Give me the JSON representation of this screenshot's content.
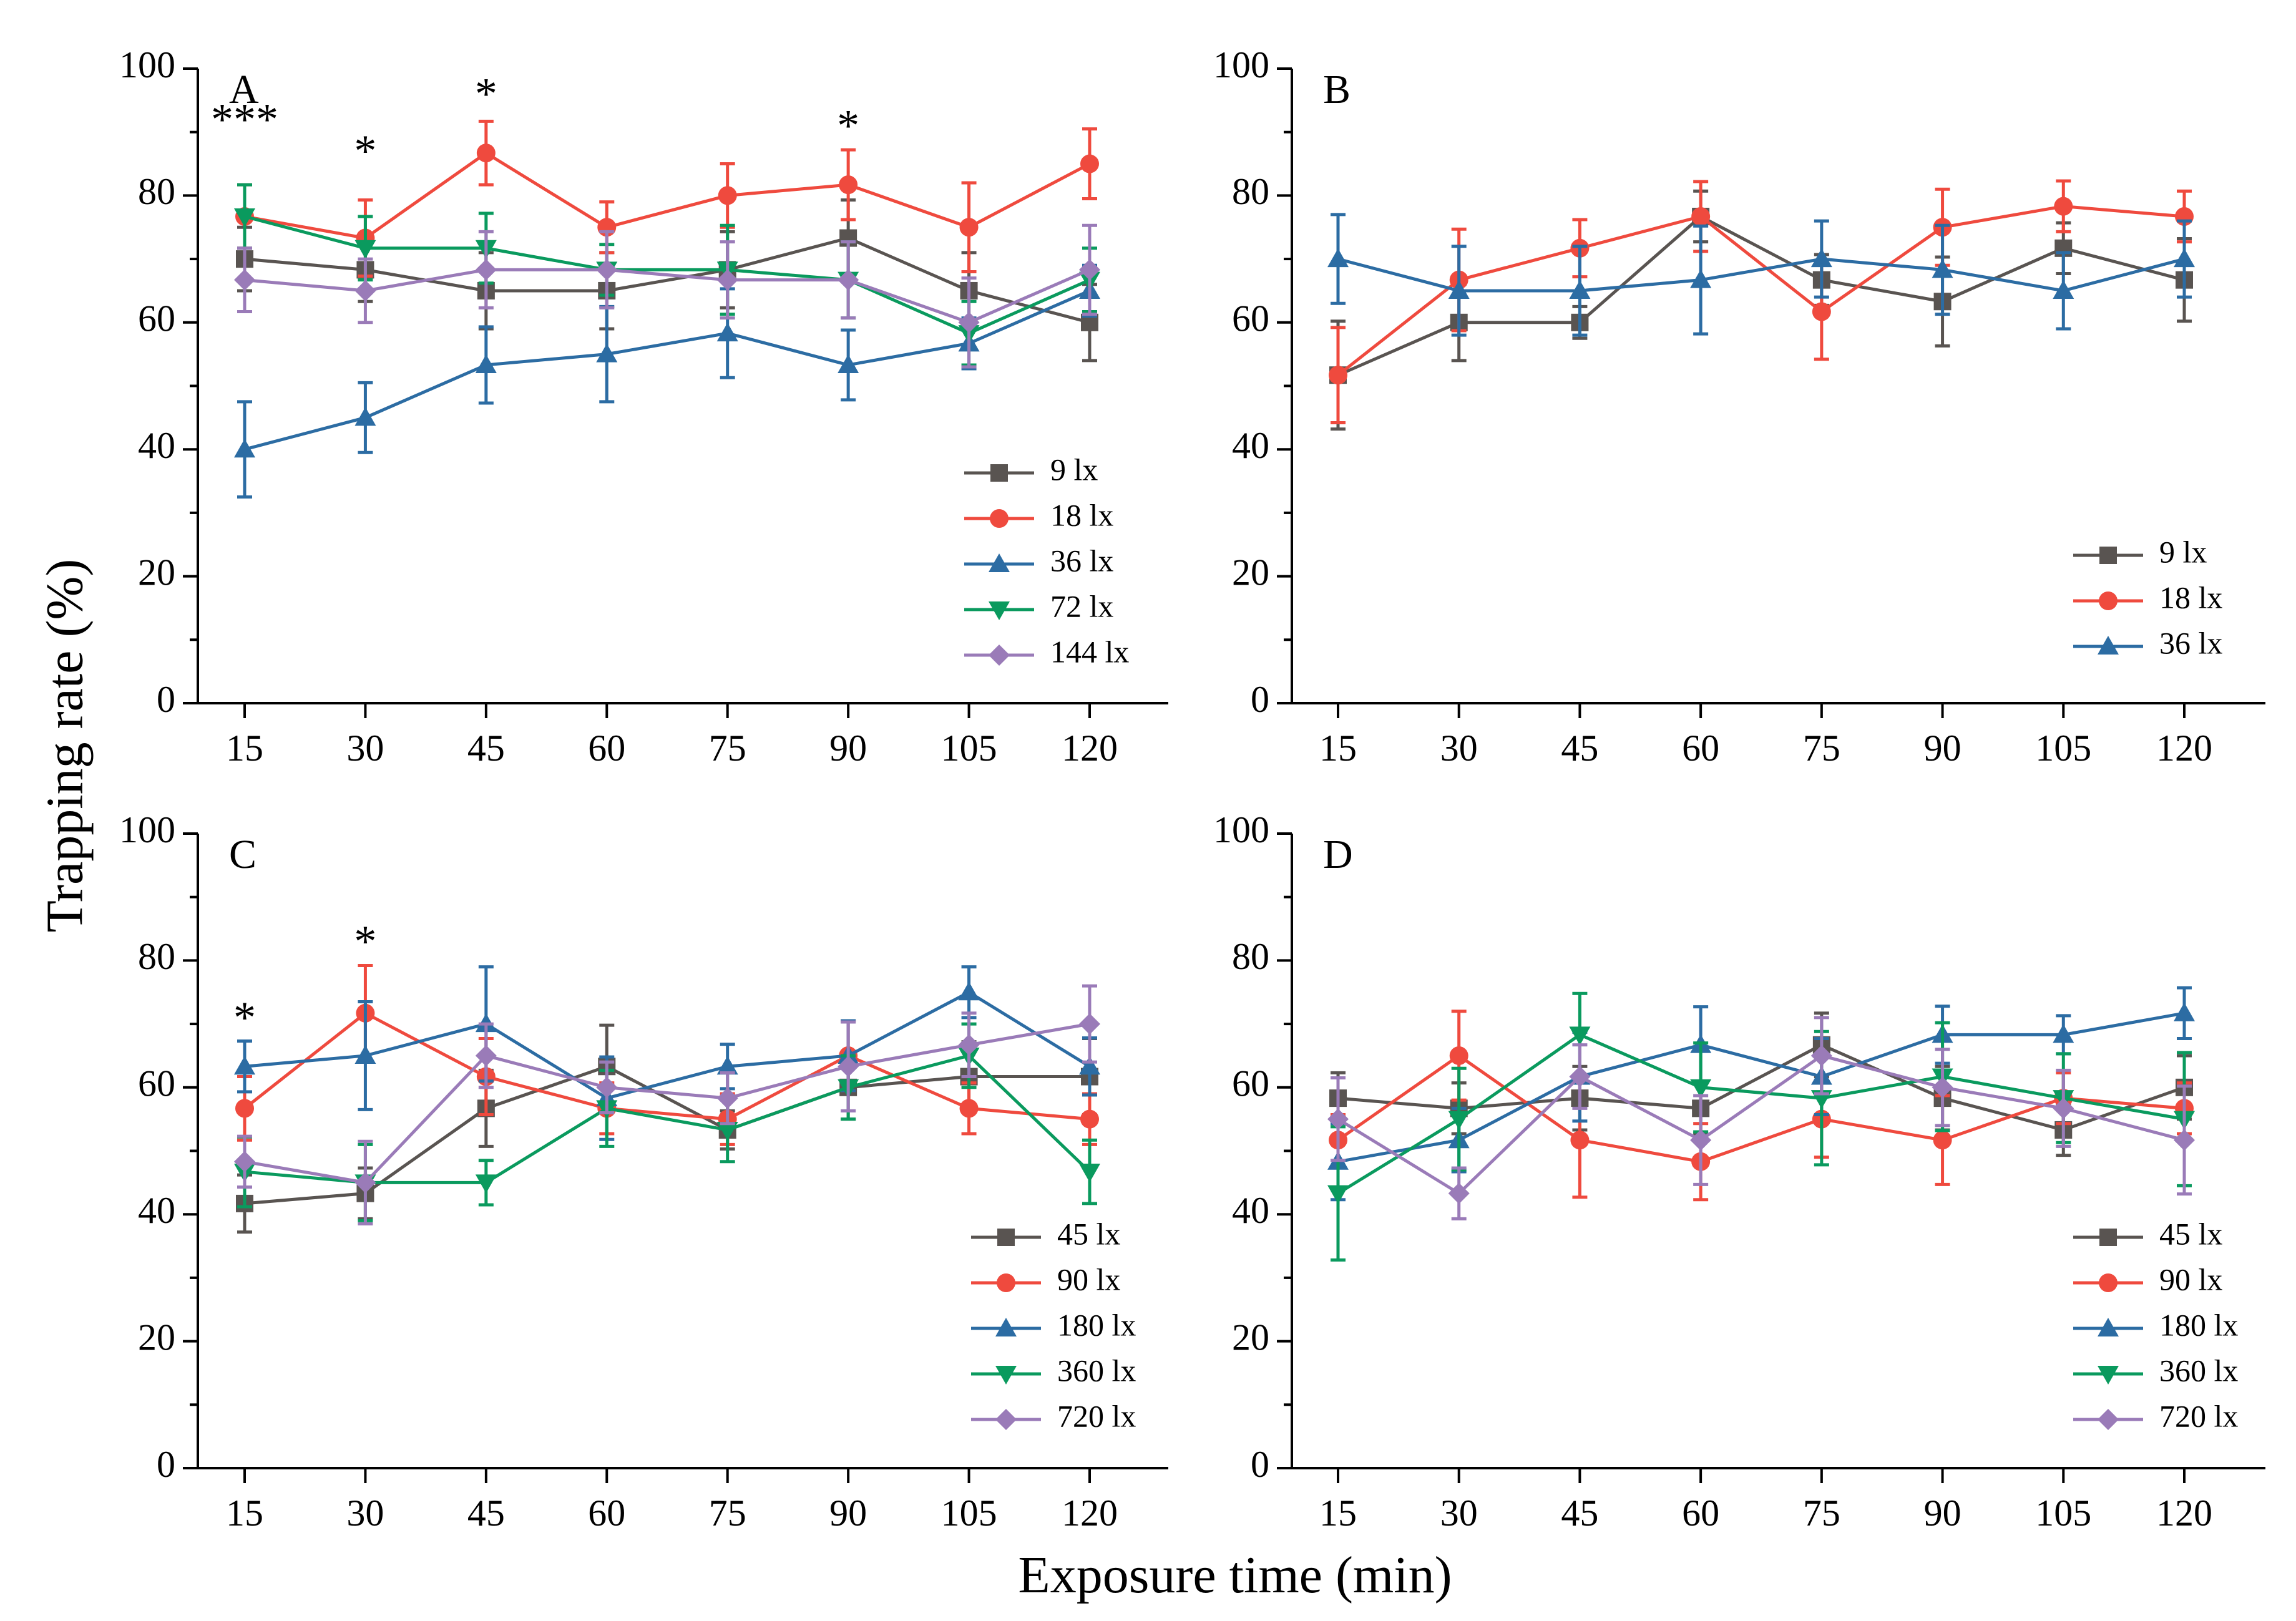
{
  "figure": {
    "ylabel": "Trapping rate (%)",
    "xlabel": "Exposure time (min)"
  },
  "chart_data": [
    {
      "panel": "A",
      "type": "line",
      "x": [
        15,
        30,
        45,
        60,
        75,
        90,
        105,
        120
      ],
      "xticks": [
        "15",
        "30",
        "45",
        "60",
        "75",
        "90",
        "105",
        "120"
      ],
      "ylim": [
        0,
        100
      ],
      "yticks": [
        "0",
        "20",
        "40",
        "60",
        "80",
        "100"
      ],
      "annotations": [
        {
          "x": 15,
          "text": "***",
          "y": 92
        },
        {
          "x": 30,
          "text": "*",
          "y": 87
        },
        {
          "x": 45,
          "text": "*",
          "y": 96
        },
        {
          "x": 90,
          "text": "*",
          "y": 91
        }
      ],
      "series": [
        {
          "name": "9 lx",
          "color": "#595451",
          "marker": "square",
          "values": [
            70,
            68.3,
            65,
            65,
            68.3,
            73.3,
            65,
            60
          ],
          "errors": [
            5,
            5,
            6,
            6,
            6,
            6,
            6,
            6
          ]
        },
        {
          "name": "18 lx",
          "color": "#ef4a3e",
          "marker": "circle",
          "values": [
            76.7,
            73.3,
            86.7,
            75,
            80,
            81.7,
            75,
            85
          ],
          "errors": [
            5,
            6,
            5,
            4,
            5,
            5.5,
            7,
            5.5
          ]
        },
        {
          "name": "36 lx",
          "color": "#2c6ca3",
          "marker": "triangle-up",
          "values": [
            40,
            45,
            53.3,
            55,
            58.3,
            53.3,
            56.7,
            65
          ],
          "errors": [
            7.5,
            5.5,
            6,
            7.5,
            7,
            5.5,
            4,
            4
          ]
        },
        {
          "name": "72 lx",
          "color": "#0a9a5e",
          "marker": "triangle-down",
          "values": [
            76.7,
            71.7,
            71.7,
            68.3,
            68.3,
            66.7,
            58.3,
            66.7
          ],
          "errors": [
            5,
            5,
            5.5,
            4,
            7,
            6,
            5,
            5
          ]
        },
        {
          "name": "144 lx",
          "color": "#9a7bb8",
          "marker": "diamond",
          "values": [
            66.7,
            65,
            68.3,
            68.3,
            66.7,
            66.7,
            60,
            68.3
          ],
          "errors": [
            5,
            5,
            6,
            6,
            6,
            6,
            7,
            7
          ]
        }
      ]
    },
    {
      "panel": "B",
      "type": "line",
      "x": [
        15,
        30,
        45,
        60,
        75,
        90,
        105,
        120
      ],
      "xticks": [
        "15",
        "30",
        "45",
        "60",
        "75",
        "90",
        "105",
        "120"
      ],
      "ylim": [
        0,
        100
      ],
      "yticks": [
        "0",
        "20",
        "40",
        "60",
        "80",
        "100"
      ],
      "annotations": [],
      "series": [
        {
          "name": "9 lx",
          "color": "#595451",
          "marker": "square",
          "values": [
            51.7,
            60,
            60,
            76.7,
            66.7,
            63.3,
            71.7,
            66.7
          ],
          "errors": [
            8.5,
            6,
            2.5,
            4,
            4,
            7,
            4,
            6.5
          ]
        },
        {
          "name": "18 lx",
          "color": "#ef4a3e",
          "marker": "circle",
          "values": [
            51.7,
            66.7,
            71.7,
            76.7,
            61.7,
            75,
            78.3,
            76.7
          ],
          "errors": [
            7.5,
            8,
            4.5,
            5.5,
            7.5,
            6,
            4,
            4
          ]
        },
        {
          "name": "36 lx",
          "color": "#2c6ca3",
          "marker": "triangle-up",
          "values": [
            70,
            65,
            65,
            66.7,
            70,
            68.3,
            65,
            70
          ],
          "errors": [
            7,
            7,
            7,
            8.5,
            6,
            7,
            6,
            6
          ]
        }
      ]
    },
    {
      "panel": "C",
      "type": "line",
      "x": [
        15,
        30,
        45,
        60,
        75,
        90,
        105,
        120
      ],
      "xticks": [
        "15",
        "30",
        "45",
        "60",
        "75",
        "90",
        "105",
        "120"
      ],
      "ylim": [
        0,
        100
      ],
      "yticks": [
        "0",
        "20",
        "40",
        "60",
        "80",
        "100"
      ],
      "annotations": [
        {
          "x": 15,
          "text": "*",
          "y": 71
        },
        {
          "x": 30,
          "text": "*",
          "y": 83
        }
      ],
      "series": [
        {
          "name": "45 lx",
          "color": "#595451",
          "marker": "square",
          "values": [
            41.7,
            43.3,
            56.7,
            63.3,
            53.3,
            60,
            61.7,
            61.7
          ],
          "errors": [
            4.5,
            4,
            6,
            6.5,
            3,
            5,
            5.5,
            6
          ]
        },
        {
          "name": "90 lx",
          "color": "#ef4a3e",
          "marker": "circle",
          "values": [
            56.7,
            71.7,
            61.7,
            56.7,
            55,
            65,
            56.7,
            55
          ],
          "errors": [
            5,
            7.5,
            6,
            4,
            4,
            5.5,
            4,
            4
          ]
        },
        {
          "name": "180 lx",
          "color": "#2c6ca3",
          "marker": "triangle-up",
          "values": [
            63.3,
            65,
            70,
            58.3,
            63.3,
            65,
            75,
            63.3
          ],
          "errors": [
            4,
            8.5,
            9,
            6.5,
            3.5,
            5.5,
            4,
            4.5
          ]
        },
        {
          "name": "360 lx",
          "color": "#0a9a5e",
          "marker": "triangle-down",
          "values": [
            46.7,
            45,
            45,
            56.7,
            53.3,
            60,
            65,
            46.7
          ],
          "errors": [
            5.5,
            6,
            3.5,
            6,
            5,
            5,
            5,
            5
          ]
        },
        {
          "name": "720 lx",
          "color": "#9a7bb8",
          "marker": "diamond",
          "values": [
            48.3,
            45,
            65,
            60,
            58.3,
            63.3,
            66.7,
            70
          ],
          "errors": [
            4,
            6.5,
            5,
            4,
            4,
            7,
            5,
            6
          ]
        }
      ]
    },
    {
      "panel": "D",
      "type": "line",
      "x": [
        15,
        30,
        45,
        60,
        75,
        90,
        105,
        120
      ],
      "xticks": [
        "15",
        "30",
        "45",
        "60",
        "75",
        "90",
        "105",
        "120"
      ],
      "ylim": [
        0,
        100
      ],
      "yticks": [
        "0",
        "20",
        "40",
        "60",
        "80",
        "100"
      ],
      "annotations": [],
      "series": [
        {
          "name": "45 lx",
          "color": "#595451",
          "marker": "square",
          "values": [
            58.3,
            56.7,
            58.3,
            56.7,
            66.7,
            58.3,
            53.3,
            60
          ],
          "errors": [
            4,
            4,
            5,
            4,
            5,
            5,
            4,
            5
          ]
        },
        {
          "name": "90 lx",
          "color": "#ef4a3e",
          "marker": "circle",
          "values": [
            51.7,
            65,
            51.7,
            48.3,
            55,
            51.7,
            58.3,
            56.7
          ],
          "errors": [
            4,
            7,
            9,
            6,
            6,
            7,
            4,
            4
          ]
        },
        {
          "name": "180 lx",
          "color": "#2c6ca3",
          "marker": "triangle-up",
          "values": [
            48.3,
            51.7,
            61.7,
            66.7,
            61.7,
            68.3,
            68.3,
            71.7
          ],
          "errors": [
            6,
            5,
            7,
            6,
            6,
            4.5,
            3,
            4
          ]
        },
        {
          "name": "360 lx",
          "color": "#0a9a5e",
          "marker": "triangle-down",
          "values": [
            43.3,
            55,
            68.3,
            60,
            58.3,
            61.7,
            58.3,
            55
          ],
          "errors": [
            10.5,
            8,
            6.5,
            7,
            10.5,
            8.5,
            7,
            10.5
          ]
        },
        {
          "name": "720 lx",
          "color": "#9a7bb8",
          "marker": "diamond",
          "values": [
            55,
            43.3,
            61.7,
            51.7,
            65,
            60,
            56.7,
            51.7
          ],
          "errors": [
            6.5,
            4,
            5,
            7,
            6,
            6,
            6,
            8.5
          ]
        }
      ]
    }
  ]
}
